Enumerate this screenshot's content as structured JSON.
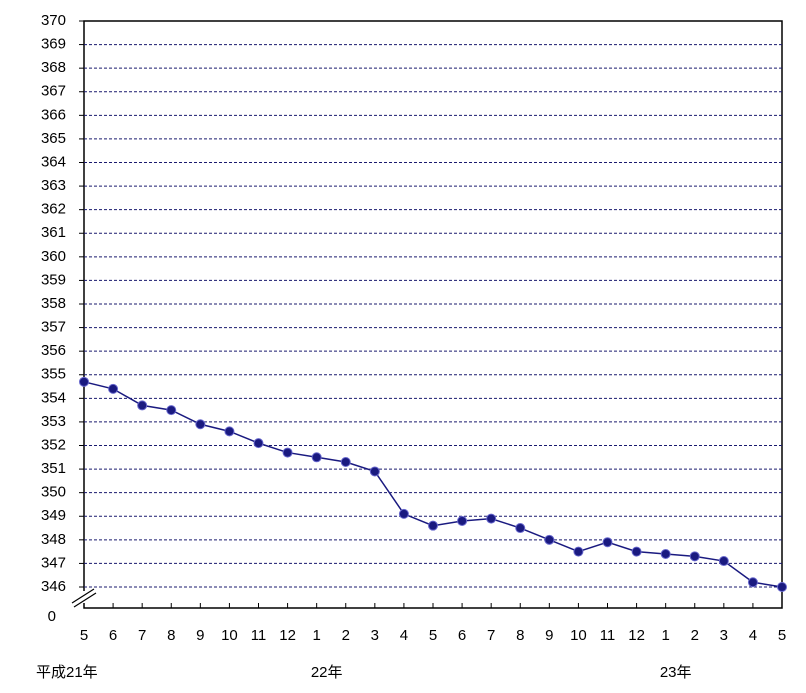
{
  "chart_data": {
    "type": "line",
    "categories": [
      "5",
      "6",
      "7",
      "8",
      "9",
      "10",
      "11",
      "12",
      "1",
      "2",
      "3",
      "4",
      "5",
      "6",
      "7",
      "8",
      "9",
      "10",
      "11",
      "12",
      "1",
      "2",
      "3",
      "4",
      "5"
    ],
    "year_labels": [
      {
        "label": "平成21年",
        "at": 0
      },
      {
        "label": "22年",
        "at": 8
      },
      {
        "label": "23年",
        "at": 20
      }
    ],
    "series": [
      {
        "color": "#1a1a80",
        "values": [
          354.7,
          354.4,
          353.7,
          353.5,
          352.9,
          352.6,
          352.1,
          351.7,
          351.5,
          351.3,
          350.9,
          349.1,
          348.6,
          348.8,
          348.9,
          348.5,
          348.0,
          347.5,
          347.9,
          347.5,
          347.4,
          347.3,
          347.1,
          346.2,
          346.0
        ]
      }
    ],
    "ylim": [
      346,
      370
    ],
    "yticks": [
      346,
      347,
      348,
      349,
      350,
      351,
      352,
      353,
      354,
      355,
      356,
      357,
      358,
      359,
      360,
      361,
      362,
      363,
      364,
      365,
      366,
      367,
      368,
      369,
      370
    ],
    "axis_break_tick": 0,
    "grid": true
  }
}
